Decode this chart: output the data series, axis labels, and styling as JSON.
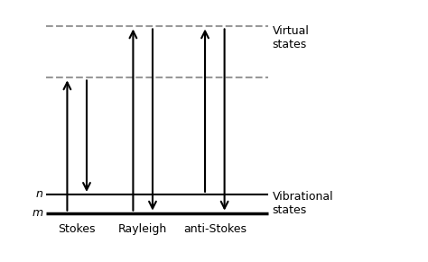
{
  "bg_color": "#ffffff",
  "fig_width": 4.74,
  "fig_height": 2.91,
  "dpi": 100,
  "xlim": [
    0,
    10
  ],
  "ylim": [
    0,
    10
  ],
  "level_m": 1.2,
  "level_n": 2.0,
  "level_virt_lower": 7.0,
  "level_virt_upper": 9.2,
  "level_line_xstart": 0.4,
  "level_line_xend": 7.8,
  "label_n": "n",
  "label_m": "m",
  "label_virtual": "Virtual\nstates",
  "label_vibrational": "Vibrational\nstates",
  "label_stokes": "Stokes",
  "label_rayleigh": "Rayleigh",
  "label_antistokes": "anti-Stokes",
  "stokes_x_up": 1.1,
  "stokes_x_down": 1.75,
  "rayleigh_x_up": 3.3,
  "rayleigh_x_down": 3.95,
  "antistokes_x_up": 5.7,
  "antistokes_x_down": 6.35,
  "arrow_color": "#000000",
  "line_color": "#000000",
  "dashed_color": "#999999",
  "fontsize_labels": 9,
  "fontsize_states": 9
}
